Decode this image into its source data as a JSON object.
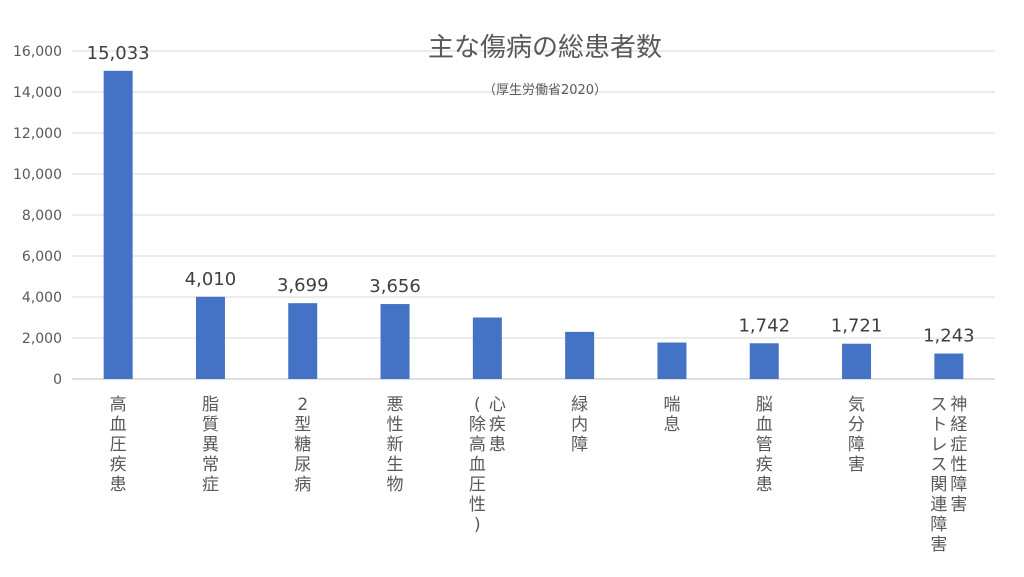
{
  "chart_data": {
    "type": "bar",
    "title": "主な傷病の総患者数",
    "subtitle": "（厚生労働省2020）",
    "categories": [
      [
        "高血圧疾患"
      ],
      [
        "脂質異常症"
      ],
      [
        "2型糖尿病"
      ],
      [
        "悪性新生物"
      ],
      [
        "心疾患",
        "(除高血圧性)"
      ],
      [
        "緑内障"
      ],
      [
        "喘息"
      ],
      [
        "脳血管疾患"
      ],
      [
        "気分障害"
      ],
      [
        "神経症性障害",
        "ストレス関連障害"
      ]
    ],
    "values": [
      15033,
      4010,
      3699,
      3656,
      3000,
      2300,
      1780,
      1742,
      1721,
      1243
    ],
    "data_labels": [
      "15,033",
      "4,010",
      "3,699",
      "3,656",
      "",
      "",
      "",
      "1,742",
      "1,721",
      "1,243"
    ],
    "yticks": [
      "0",
      "2,000",
      "4,000",
      "6,000",
      "8,000",
      "10,000",
      "12,000",
      "14,000",
      "16,000"
    ],
    "ylim": [
      0,
      16000
    ],
    "grid": true,
    "legend": "none",
    "bar_color": "#4472c4"
  }
}
